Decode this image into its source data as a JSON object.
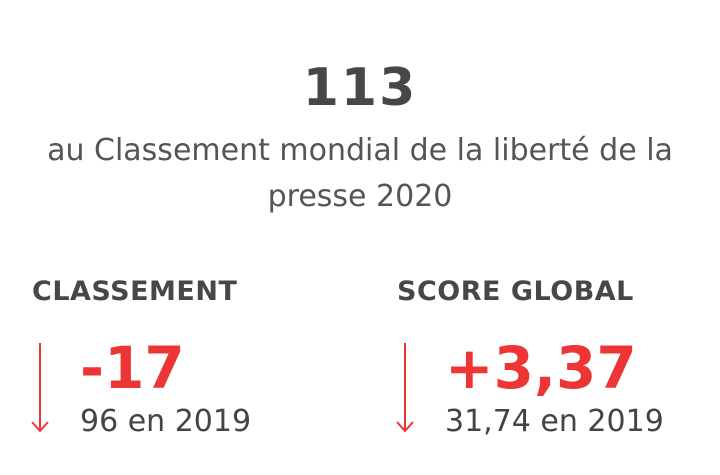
{
  "headline": {
    "rank": "113",
    "description": "au Classement mondial de la liberté de la presse 2020"
  },
  "stats": [
    {
      "label": "CLASSEMENT",
      "delta": "-17",
      "previous": "96 en 2019",
      "icon": "arrow-down-icon"
    },
    {
      "label": "SCORE GLOBAL",
      "delta": "+3,37",
      "previous": "31,74 en 2019",
      "icon": "arrow-down-icon"
    }
  ],
  "colors": {
    "accent": "#ee3535",
    "text": "#4a4646"
  }
}
